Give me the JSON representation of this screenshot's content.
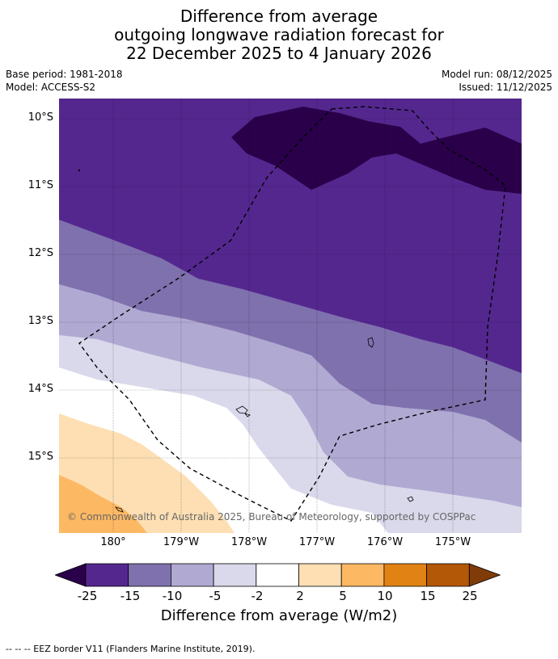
{
  "title": {
    "line1": "Difference from average",
    "line2": "outgoing longwave radiation forecast for",
    "line3": "22 December 2025 to 4 January 2026"
  },
  "meta": {
    "base_period": "Base period: 1981-2018",
    "model": "Model: ACCESS-S2",
    "model_run": "Model run: 08/12/2025",
    "issued": "Issued: 11/12/2025"
  },
  "map": {
    "lat_ticks": [
      "10°S",
      "11°S",
      "12°S",
      "13°S",
      "14°S",
      "15°S"
    ],
    "lon_ticks": [
      "180°",
      "179°W",
      "178°W",
      "177°W",
      "176°W",
      "175°W"
    ],
    "copyright": "© Commonwealth of Australia 2025, Bureau of Meteorology, supported by COSPPac",
    "eez_label": "EEZ border"
  },
  "colorbar": {
    "ticks": [
      "-25",
      "-15",
      "-10",
      "-5",
      "-2",
      "2",
      "5",
      "10",
      "15",
      "25"
    ],
    "colors": [
      "#2a004a",
      "#54278f",
      "#7f71ad",
      "#b0a9d2",
      "#d9d9eb",
      "#ffffff",
      "#fddfb3",
      "#fdb863",
      "#e08214",
      "#b35806",
      "#7f3b08"
    ],
    "label": "Difference from average (W/m2)"
  },
  "legend": {
    "text": "--  --  -- EEZ border V11 (Flanders Marine Institute, 2019)."
  }
}
